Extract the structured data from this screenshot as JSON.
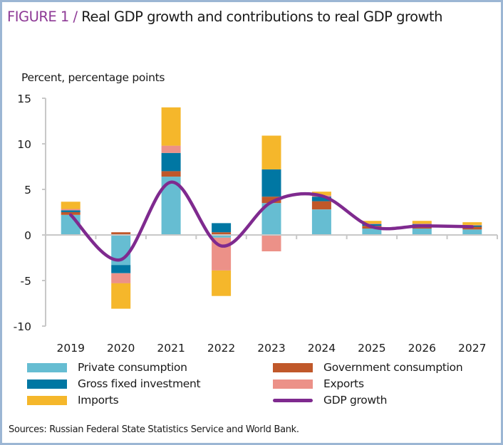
{
  "header": {
    "figure_label": "FIGURE 1 /",
    "title_text": "Real GDP growth and contributions to real GDP growth"
  },
  "source": "Sources: Russian Federal State Statistics Service and World Bank.",
  "colors": {
    "private_consumption": "#66bdd2",
    "government_consumption": "#c0582a",
    "gross_fixed_investment": "#0077a3",
    "exports": "#ec9188",
    "imports": "#f5b72b",
    "gdp_growth": "#7f2a8f",
    "title_accent": "#8e3a96",
    "frame": "#9cb6d4",
    "axis": "#c8c8c8"
  },
  "chart_data": {
    "type": "bar",
    "stacked": true,
    "title": "Real GDP growth and contributions to real GDP growth",
    "ylabel": "Percent, percentage points",
    "xlabel": "",
    "ylim": [
      -10,
      15
    ],
    "yticks": [
      15,
      10,
      5,
      0,
      -5,
      -10
    ],
    "grid": false,
    "legend_position": "bottom",
    "categories": [
      "2019",
      "2020",
      "2021",
      "2022",
      "2023",
      "2024",
      "2025",
      "2026",
      "2027"
    ],
    "series": [
      {
        "name": "Private consumption",
        "key": "private_consumption",
        "values": [
          2.2,
          -3.3,
          6.4,
          -0.3,
          3.5,
          2.8,
          0.7,
          0.7,
          0.6
        ]
      },
      {
        "name": "Government consumption",
        "key": "government_consumption",
        "values": [
          0.3,
          0.3,
          0.6,
          0.3,
          0.7,
          0.9,
          0.3,
          0.3,
          0.3
        ]
      },
      {
        "name": "Gross fixed investment",
        "key": "gross_fixed_investment",
        "values": [
          0.2,
          -0.9,
          2.0,
          1.0,
          3.0,
          0.5,
          0.2,
          0.2,
          0.15
        ]
      },
      {
        "name": "Exports",
        "key": "exports",
        "values": [
          0.15,
          -1.1,
          0.8,
          -3.6,
          -1.8,
          0.15,
          0.05,
          0.05,
          0.05
        ]
      },
      {
        "name": "Imports",
        "key": "imports",
        "values": [
          0.8,
          -2.8,
          4.2,
          -2.8,
          3.7,
          0.4,
          0.3,
          0.3,
          0.3
        ]
      }
    ],
    "line_series": {
      "name": "GDP growth",
      "key": "gdp_growth",
      "values": [
        2.2,
        -2.7,
        5.8,
        -1.2,
        3.6,
        4.3,
        0.9,
        1.0,
        0.9
      ]
    },
    "legend": [
      {
        "label": "Private consumption",
        "key": "private_consumption",
        "kind": "box"
      },
      {
        "label": "Government consumption",
        "key": "government_consumption",
        "kind": "box"
      },
      {
        "label": "Gross fixed investment",
        "key": "gross_fixed_investment",
        "kind": "box"
      },
      {
        "label": "Exports",
        "key": "exports",
        "kind": "box"
      },
      {
        "label": "Imports",
        "key": "imports",
        "kind": "box"
      },
      {
        "label": "GDP growth",
        "key": "gdp_growth",
        "kind": "line"
      }
    ]
  }
}
